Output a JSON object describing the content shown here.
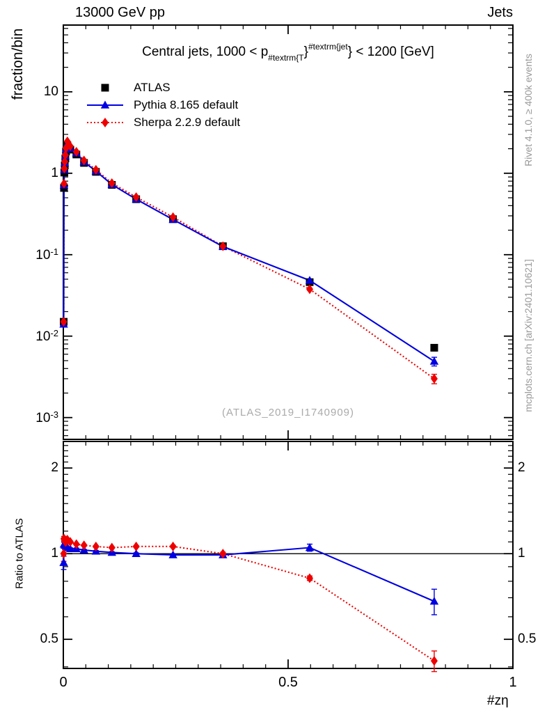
{
  "header": {
    "left_title": "13000 GeV pp",
    "right_title": "Jets"
  },
  "panel_title": {
    "pre": "Central jets, 1000 < p",
    "sub": "#textrm{T",
    "brace1": "}",
    "sup": "#textrm{jet",
    "brace2": "}",
    "post": " < 1200 [GeV]"
  },
  "legend": {
    "items": [
      {
        "label": "ATLAS",
        "marker": "square",
        "line": "none",
        "color": "#000000"
      },
      {
        "label": "Pythia 8.165 default",
        "marker": "triangle",
        "line": "solid",
        "color": "#0000e0"
      },
      {
        "label": "Sherpa 2.2.9 default",
        "marker": "diamond",
        "line": "dotted",
        "color": "#ee0000"
      }
    ]
  },
  "side_notes": {
    "top": "Rivet 4.1.0, ≥ 400k events",
    "bottom": "mcplots.cern.ch [arXiv:2401.10621]"
  },
  "watermark": "(ATLAS_2019_I1740909)",
  "axes": {
    "x": {
      "label": "#zη",
      "ticks": [
        {
          "v": 0,
          "label": "0"
        },
        {
          "v": 0.5,
          "label": "0.5"
        },
        {
          "v": 1,
          "label": "1"
        }
      ],
      "minor_step": 0.05,
      "range": [
        0,
        1.0
      ]
    },
    "y_main": {
      "label": "fraction/bin",
      "scale": "log",
      "range": [
        0.00054,
        66
      ],
      "ticks": [
        {
          "v": 10,
          "label": "10"
        },
        {
          "v": 1,
          "label": "1"
        },
        {
          "v": 0.1,
          "label": "10^-1"
        },
        {
          "v": 0.01,
          "label": "10^-2"
        },
        {
          "v": 0.001,
          "label": "10^-3"
        }
      ]
    },
    "y_ratio": {
      "label": "Ratio to ATLAS",
      "scale": "log",
      "range": [
        0.395,
        2.48
      ],
      "ticks": [
        {
          "v": 2,
          "label": "2"
        },
        {
          "v": 1,
          "label": "1"
        },
        {
          "v": 0.5,
          "label": "0.5"
        }
      ]
    }
  },
  "chart_data": {
    "type": "line",
    "title": "Central jets, 1000 < p_#textrm{T}^#textrm{jet} < 1200 [GeV]",
    "xlabel": "#zη",
    "ylabel_main": "fraction/bin",
    "ylabel_ratio": "Ratio to ATLAS",
    "x_range": [
      0,
      1.0
    ],
    "y_range_main": [
      0.00054,
      66
    ],
    "y_range_ratio": [
      0.395,
      2.48
    ],
    "ratio_reference": 1.0,
    "x": [
      0.0008,
      0.0015,
      0.0022,
      0.0032,
      0.0045,
      0.006,
      0.009,
      0.0155,
      0.029,
      0.046,
      0.0725,
      0.108,
      0.162,
      0.244,
      0.355,
      0.548,
      0.825
    ],
    "series": [
      {
        "name": "ATLAS",
        "color": "#000000",
        "marker": "square",
        "line": "none",
        "values": [
          0.015,
          0.66,
          1.02,
          1.25,
          1.52,
          1.85,
          2.2,
          1.95,
          1.7,
          1.34,
          1.04,
          0.72,
          0.48,
          0.273,
          0.127,
          0.046,
          0.0072
        ],
        "ratio": [
          1,
          1,
          1,
          1,
          1,
          1,
          1,
          1,
          1,
          1,
          1,
          1,
          1,
          1,
          1,
          1,
          1
        ],
        "ratio_is_reference": true
      },
      {
        "name": "Pythia 8.165 default",
        "color": "#0000e0",
        "marker": "triangle",
        "line": "solid",
        "values": [
          0.014,
          0.713,
          1.102,
          1.338,
          1.626,
          1.961,
          2.31,
          2.028,
          1.768,
          1.38,
          1.061,
          0.727,
          0.48,
          0.27,
          0.126,
          0.0483,
          0.0049
        ],
        "yerr": [
          0,
          0,
          0,
          0,
          0,
          0,
          0,
          0,
          0,
          0,
          0,
          0,
          0,
          0,
          0,
          0.0015,
          0.0006
        ],
        "ratio": [
          0.93,
          1.08,
          1.08,
          1.07,
          1.07,
          1.06,
          1.05,
          1.04,
          1.04,
          1.03,
          1.02,
          1.01,
          1.0,
          0.99,
          0.99,
          1.05,
          0.68
        ],
        "ratio_err": [
          0.05,
          0.02,
          0.015,
          0.012,
          0.01,
          0.01,
          0.008,
          0.008,
          0.007,
          0.006,
          0.006,
          0.006,
          0.007,
          0.01,
          0.012,
          0.03,
          0.07
        ]
      },
      {
        "name": "Sherpa 2.2.9 default",
        "color": "#ee0000",
        "marker": "diamond",
        "line": "dotted",
        "values": [
          0.015,
          0.746,
          1.142,
          1.388,
          1.672,
          2.035,
          2.464,
          2.145,
          1.836,
          1.434,
          1.102,
          0.756,
          0.509,
          0.289,
          0.127,
          0.0377,
          0.003
        ],
        "yerr": [
          0,
          0,
          0,
          0,
          0,
          0,
          0,
          0,
          0,
          0,
          0,
          0,
          0,
          0,
          0,
          0.001,
          0.0004
        ],
        "ratio": [
          1.0,
          1.13,
          1.12,
          1.11,
          1.1,
          1.1,
          1.12,
          1.1,
          1.08,
          1.07,
          1.06,
          1.05,
          1.06,
          1.06,
          1.0,
          0.82,
          0.42
        ],
        "ratio_err": [
          0.06,
          0.02,
          0.015,
          0.012,
          0.01,
          0.01,
          0.008,
          0.008,
          0.007,
          0.006,
          0.006,
          0.006,
          0.007,
          0.01,
          0.012,
          0.015,
          0.035
        ]
      }
    ]
  }
}
